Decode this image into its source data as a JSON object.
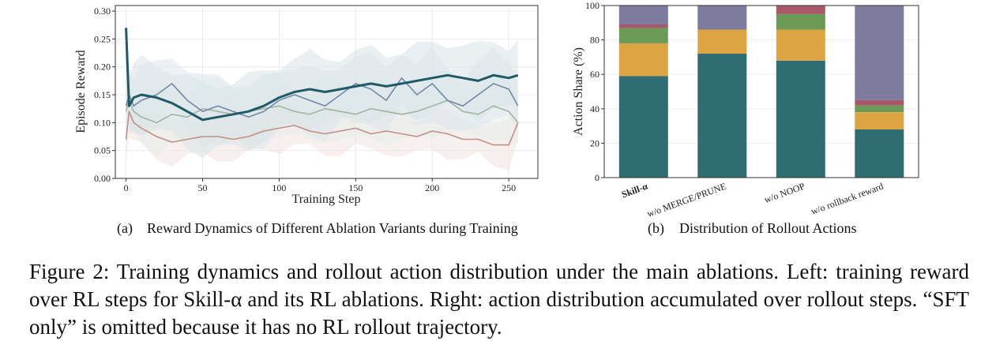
{
  "chart_data": [
    {
      "type": "line",
      "caption_tag": "(a)",
      "caption_text": "Reward Dynamics of Different Ablation Variants during Training",
      "xlabel": "Training Step",
      "ylabel": "Episode Reward",
      "xlim": [
        -7,
        269
      ],
      "ylim": [
        0.0,
        0.31
      ],
      "xticks": [
        "0",
        "50",
        "100",
        "150",
        "200",
        "250"
      ],
      "yticks": [
        "0.00",
        "0.05",
        "0.10",
        "0.15",
        "0.20",
        "0.25",
        "0.30"
      ],
      "grid": true,
      "series": [
        {
          "color": "#c28e85",
          "band": "#f2e3e1",
          "x": [
            0,
            2,
            5,
            10,
            20,
            30,
            40,
            50,
            60,
            70,
            80,
            90,
            100,
            110,
            120,
            130,
            140,
            150,
            160,
            170,
            180,
            190,
            200,
            210,
            220,
            230,
            240,
            250,
            256
          ],
          "y": [
            0.07,
            0.12,
            0.1,
            0.09,
            0.075,
            0.065,
            0.07,
            0.075,
            0.075,
            0.07,
            0.075,
            0.085,
            0.09,
            0.095,
            0.085,
            0.08,
            0.085,
            0.09,
            0.08,
            0.085,
            0.08,
            0.075,
            0.085,
            0.08,
            0.07,
            0.07,
            0.06,
            0.06,
            0.1
          ]
        },
        {
          "color": "#a4b4a3",
          "band": "#e6ecea",
          "x": [
            0,
            2,
            5,
            10,
            20,
            30,
            40,
            50,
            60,
            70,
            80,
            90,
            100,
            110,
            120,
            130,
            140,
            150,
            160,
            170,
            180,
            190,
            200,
            210,
            220,
            230,
            240,
            250,
            256
          ],
          "y": [
            0.12,
            0.14,
            0.12,
            0.11,
            0.1,
            0.115,
            0.11,
            0.125,
            0.12,
            0.115,
            0.12,
            0.125,
            0.13,
            0.12,
            0.115,
            0.125,
            0.12,
            0.115,
            0.125,
            0.12,
            0.115,
            0.12,
            0.13,
            0.14,
            0.12,
            0.115,
            0.13,
            0.12,
            0.1
          ]
        },
        {
          "color": "#7288a8",
          "band": "#dfe6ec",
          "x": [
            0,
            2,
            5,
            10,
            20,
            30,
            40,
            50,
            60,
            70,
            80,
            90,
            100,
            110,
            120,
            130,
            140,
            150,
            160,
            170,
            180,
            190,
            200,
            210,
            220,
            230,
            240,
            250,
            256
          ],
          "y": [
            0.13,
            0.15,
            0.13,
            0.14,
            0.15,
            0.17,
            0.14,
            0.12,
            0.13,
            0.12,
            0.11,
            0.12,
            0.14,
            0.15,
            0.14,
            0.13,
            0.15,
            0.17,
            0.16,
            0.14,
            0.18,
            0.15,
            0.17,
            0.14,
            0.13,
            0.15,
            0.17,
            0.16,
            0.13
          ]
        },
        {
          "color": "#1f5a66",
          "band": "#d9e4e6",
          "width": 3,
          "x": [
            0,
            2,
            5,
            10,
            20,
            30,
            40,
            50,
            60,
            70,
            80,
            90,
            100,
            110,
            120,
            130,
            140,
            150,
            160,
            170,
            180,
            190,
            200,
            210,
            220,
            230,
            240,
            250,
            256
          ],
          "y": [
            0.27,
            0.13,
            0.145,
            0.15,
            0.145,
            0.135,
            0.12,
            0.105,
            0.11,
            0.115,
            0.12,
            0.13,
            0.145,
            0.155,
            0.16,
            0.155,
            0.16,
            0.165,
            0.17,
            0.165,
            0.17,
            0.175,
            0.18,
            0.185,
            0.18,
            0.175,
            0.185,
            0.18,
            0.185
          ]
        }
      ]
    },
    {
      "type": "bar",
      "stacked": true,
      "caption_tag": "(b)",
      "caption_text": "Distribution of Rollout Actions",
      "ylabel": "Action Share (%)",
      "ylim": [
        0,
        100
      ],
      "yticks": [
        "0",
        "20",
        "40",
        "60",
        "80",
        "100"
      ],
      "categories": [
        "Skill-α",
        "w/o MERGE/PRUNE",
        "w/o NOOP",
        "w/o rollback reward"
      ],
      "bold_category": 0,
      "series": [
        {
          "color": "#2f6d72",
          "values": [
            59,
            72,
            68,
            28
          ]
        },
        {
          "color": "#dca443",
          "values": [
            19,
            14,
            18,
            10
          ]
        },
        {
          "color": "#6a9a56",
          "values": [
            9,
            0,
            9,
            4
          ]
        },
        {
          "color": "#a95869",
          "values": [
            2,
            0,
            5,
            3
          ]
        },
        {
          "color": "#7e7c9e",
          "values": [
            11,
            14,
            0,
            55
          ]
        }
      ]
    }
  ],
  "caption": {
    "label": "Figure 2:",
    "text": "Training dynamics and rollout action distribution under the main ablations. Left: training reward over RL steps for Skill-α and its RL ablations. Right: action distribution accumulated over rollout steps. “SFT only” is omitted because it has no RL rollout trajectory."
  }
}
